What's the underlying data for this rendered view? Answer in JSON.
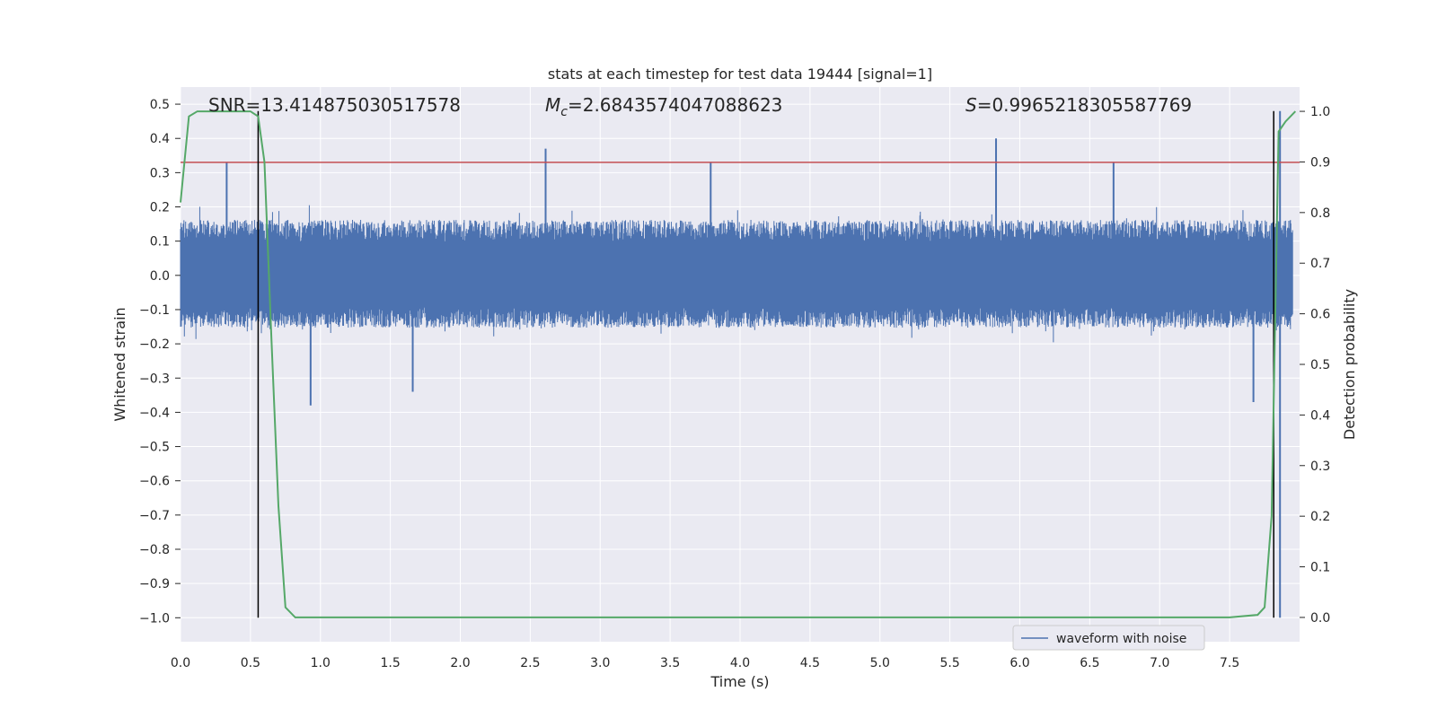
{
  "chart_data": {
    "type": "line",
    "title": "stats at each timestep for test data 19444 [signal=1]",
    "xlabel": "Time (s)",
    "ylabel": "Whitened strain",
    "y2label": "Detection probability",
    "xlim": [
      0.0,
      8.0
    ],
    "ylim": [
      -1.07,
      0.55
    ],
    "y2lim": [
      -0.048,
      1.048
    ],
    "x_ticks": [
      "0.0",
      "0.5",
      "1.0",
      "1.5",
      "2.0",
      "2.5",
      "3.0",
      "3.5",
      "4.0",
      "4.5",
      "5.0",
      "5.5",
      "6.0",
      "6.5",
      "7.0",
      "7.5"
    ],
    "x_tick_values": [
      0.0,
      0.5,
      1.0,
      1.5,
      2.0,
      2.5,
      3.0,
      3.5,
      4.0,
      4.5,
      5.0,
      5.5,
      6.0,
      6.5,
      7.0,
      7.5
    ],
    "y_ticks": [
      "0.5",
      "0.4",
      "0.3",
      "0.2",
      "0.1",
      "0.0",
      "−0.1",
      "−0.2",
      "−0.3",
      "−0.4",
      "−0.5",
      "−0.6",
      "−0.7",
      "−0.8",
      "−0.9",
      "−1.0"
    ],
    "y_tick_values": [
      0.5,
      0.4,
      0.3,
      0.2,
      0.1,
      0.0,
      -0.1,
      -0.2,
      -0.3,
      -0.4,
      -0.5,
      -0.6,
      -0.7,
      -0.8,
      -0.9,
      -1.0
    ],
    "y2_ticks": [
      "1.0",
      "0.9",
      "0.8",
      "0.7",
      "0.6",
      "0.5",
      "0.4",
      "0.3",
      "0.2",
      "0.1",
      "0.0"
    ],
    "y2_tick_values": [
      1.0,
      0.9,
      0.8,
      0.7,
      0.6,
      0.5,
      0.4,
      0.3,
      0.2,
      0.1,
      0.0
    ],
    "annotations": {
      "snr": "SNR=13.414875030517578",
      "mc_symbol": "M",
      "mc_sub": "c",
      "mc_value": "=2.6843574047088623",
      "s_symbol": "S",
      "s_value": "=0.9965218305587769"
    },
    "legend": {
      "label": "waveform with noise",
      "location": "lower-right"
    },
    "threshold_y": 0.33,
    "vertical_markers_x": [
      0.555,
      7.815
    ],
    "series": [
      {
        "name": "waveform with noise",
        "axis": "left",
        "kind": "noise",
        "typical_band": [
          -0.17,
          0.18
        ],
        "notable_peaks": [
          {
            "x": 2.61,
            "y": 0.37
          },
          {
            "x": 3.79,
            "y": 0.33
          },
          {
            "x": 5.83,
            "y": 0.4
          },
          {
            "x": 6.67,
            "y": 0.33
          },
          {
            "x": 0.33,
            "y": 0.33
          },
          {
            "x": 0.93,
            "y": -0.38
          },
          {
            "x": 1.66,
            "y": -0.34
          },
          {
            "x": 7.67,
            "y": -0.37
          },
          {
            "x": 7.86,
            "y": 0.48
          },
          {
            "x": 7.86,
            "y": -1.0
          }
        ],
        "range": [
          -1.0,
          0.48
        ]
      },
      {
        "name": "",
        "axis": "right",
        "kind": "probability",
        "x": [
          0.0,
          0.06,
          0.12,
          0.2,
          0.35,
          0.5,
          0.555,
          0.6,
          0.65,
          0.7,
          0.75,
          0.82,
          0.9,
          1.5,
          3.0,
          4.5,
          6.0,
          7.0,
          7.5,
          7.7,
          7.75,
          7.8,
          7.85,
          7.9,
          7.97
        ],
        "y": [
          0.82,
          0.99,
          1.0,
          1.0,
          1.0,
          1.0,
          0.99,
          0.9,
          0.55,
          0.22,
          0.02,
          0.0,
          0.0,
          0.0,
          0.0,
          0.0,
          0.0,
          0.0,
          0.0,
          0.005,
          0.02,
          0.2,
          0.96,
          0.98,
          1.0
        ]
      }
    ],
    "grid": true,
    "colors": {
      "background": "#eaeaf2",
      "grid": "#ffffff",
      "waveform": "#4c72b0",
      "probability": "#55a868",
      "threshold": "#c44e52",
      "marker": "#000000"
    }
  }
}
